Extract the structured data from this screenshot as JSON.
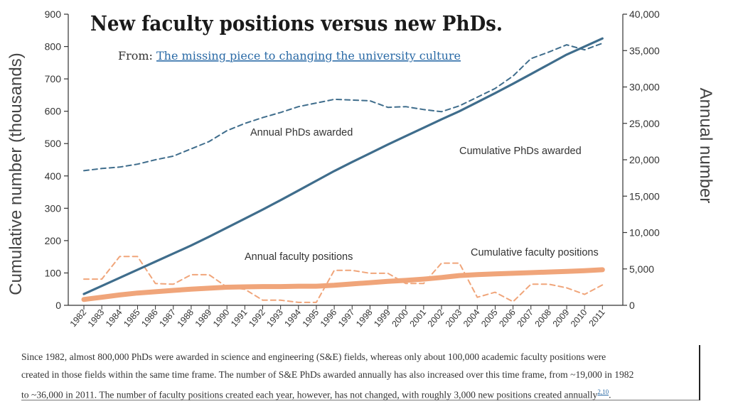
{
  "title": "New faculty positions versus new PhDs.",
  "source": {
    "prefix": "From:",
    "link_text": "The missing piece to changing the university culture"
  },
  "chart_data": {
    "type": "line",
    "title": "New faculty positions versus new PhDs.",
    "x": [
      1982,
      1983,
      1984,
      1985,
      1986,
      1987,
      1988,
      1989,
      1990,
      1991,
      1992,
      1993,
      1994,
      1995,
      1996,
      1997,
      1998,
      1999,
      2000,
      2001,
      2002,
      2003,
      2004,
      2005,
      2006,
      2007,
      2008,
      2009,
      2010,
      2011
    ],
    "x_tick_labels": [
      "1982",
      "1983",
      "1984",
      "1985",
      "1986",
      "1987",
      "1988",
      "1989",
      "1990",
      "1991",
      "1992",
      "1993",
      "1994",
      "1995",
      "1996",
      "1997",
      "1998",
      "1999",
      "2000",
      "2001",
      "2002",
      "2003",
      "2004",
      "2005",
      "2006",
      "2007",
      "2008",
      "2009",
      "2010",
      "2011"
    ],
    "y_left": {
      "label": "Cumulative number (thousands)",
      "ylim": [
        0,
        900
      ],
      "ticks": [
        0,
        100,
        200,
        300,
        400,
        500,
        600,
        700,
        800,
        900
      ],
      "tick_labels": [
        "0",
        "100",
        "200",
        "300",
        "400",
        "500",
        "600",
        "700",
        "800",
        "900"
      ]
    },
    "y_right": {
      "label": "Annual number",
      "ylim": [
        0,
        40000
      ],
      "ticks": [
        0,
        5000,
        10000,
        15000,
        20000,
        25000,
        30000,
        35000,
        40000
      ],
      "tick_labels": [
        "0",
        "5,000",
        "10,000",
        "15,000",
        "20,000",
        "25,000",
        "30,000",
        "35,000",
        "40,000"
      ]
    },
    "series": [
      {
        "name": "Cumulative PhDs awarded",
        "axis": "left",
        "style": "solid",
        "color": "#3f6d8c",
        "values": [
          35,
          60,
          85,
          110,
          135,
          160,
          185,
          212,
          240,
          268,
          296,
          325,
          355,
          385,
          415,
          443,
          470,
          497,
          523,
          549,
          575,
          600,
          628,
          656,
          685,
          715,
          745,
          775,
          800,
          825
        ]
      },
      {
        "name": "Annual PhDs awarded",
        "axis": "right",
        "style": "dashed",
        "color": "#3f6d8c",
        "values": [
          18500,
          18800,
          19000,
          19400,
          20000,
          20500,
          21500,
          22500,
          24000,
          25000,
          25800,
          26500,
          27300,
          27800,
          28300,
          28200,
          28100,
          27200,
          27300,
          26900,
          26600,
          27400,
          28600,
          29800,
          31500,
          33900,
          34800,
          35800,
          35100,
          36000
        ]
      },
      {
        "name": "Cumulative faculty positions",
        "axis": "left",
        "style": "solid",
        "color": "#f0a57a",
        "values": [
          18,
          25,
          32,
          38,
          42,
          46,
          50,
          53,
          56,
          57,
          58,
          58,
          59,
          59,
          62,
          66,
          70,
          74,
          77,
          81,
          86,
          92,
          95,
          97,
          99,
          101,
          103,
          105,
          107,
          110
        ]
      },
      {
        "name": "Annual faculty positions",
        "axis": "right",
        "style": "dashed",
        "color": "#f0a57a",
        "values": [
          3600,
          3600,
          6700,
          6700,
          3000,
          2900,
          4200,
          4200,
          2500,
          2200,
          700,
          700,
          400,
          400,
          4800,
          4800,
          4400,
          4400,
          3000,
          3000,
          5800,
          5800,
          1100,
          1800,
          500,
          2900,
          2900,
          2400,
          1500,
          2800
        ]
      }
    ],
    "annotations": [
      {
        "text": "Annual PhDs awarded",
        "series": "Annual PhDs awarded"
      },
      {
        "text": "Cumulative PhDs awarded",
        "series": "Cumulative PhDs awarded"
      },
      {
        "text": "Annual faculty positions",
        "series": "Annual faculty positions"
      },
      {
        "text": "Cumulative faculty positions",
        "series": "Cumulative faculty positions"
      }
    ],
    "grid": false,
    "legend": "none (inline labels)"
  },
  "caption": {
    "line1": "Since 1982, almost 800,000 PhDs were awarded in science and engineering (S&E) fields, whereas only about 100,000 academic faculty positions were",
    "line2": "created in those fields within the same time frame. The number of S&E PhDs awarded annually has also increased over this time frame, from ~19,000 in 1982",
    "line3": "to ~36,000 in 2011. The number of faculty positions created each year, however, has not changed, with roughly 3,000 new positions created annually",
    "citation": "2,10",
    "end": "."
  }
}
